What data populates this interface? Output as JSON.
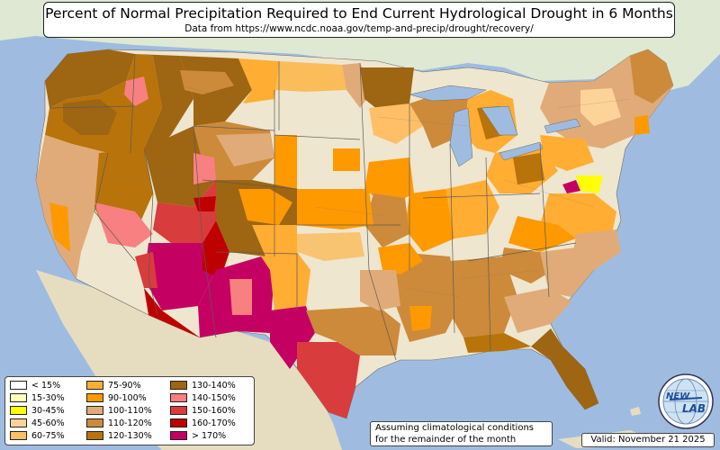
{
  "header": {
    "title": "Percent of Normal Precipitation Required to End Current Hydrological Drought in 6 Months",
    "subtitle": "Data from https://www.ncdc.noaa.gov/temp-and-precip/drought/recovery/"
  },
  "legend": {
    "items": [
      {
        "label": "< 15%",
        "color": "#ffffff"
      },
      {
        "label": "15-30%",
        "color": "#ffffc0"
      },
      {
        "label": "30-45%",
        "color": "#ffff00"
      },
      {
        "label": "45-60%",
        "color": "#fdd39a"
      },
      {
        "label": "60-75%",
        "color": "#ffbf66"
      },
      {
        "label": "75-90%",
        "color": "#ffad33"
      },
      {
        "label": "90-100%",
        "color": "#ff9900"
      },
      {
        "label": "100-110%",
        "color": "#e0ab78"
      },
      {
        "label": "110-120%",
        "color": "#cd8a3a"
      },
      {
        "label": "120-130%",
        "color": "#b8730a"
      },
      {
        "label": "130-140%",
        "color": "#9e6512"
      },
      {
        "label": "140-150%",
        "color": "#f88080"
      },
      {
        "label": "150-160%",
        "color": "#d93c3c"
      },
      {
        "label": "160-170%",
        "color": "#bf0000"
      },
      {
        "label": "> 170%",
        "color": "#c40062"
      }
    ]
  },
  "footer": {
    "note_line1": "Assuming climatological conditions",
    "note_line2": "for the remainder of the month",
    "valid": "Valid: November 21 2025"
  },
  "logo": {
    "text_top": "NEW",
    "text_bottom": "LAB",
    "icon": "globe-icon"
  },
  "colors": {
    "ocean": "#9fbce0",
    "land_outside": "#dfe8d2",
    "no_drought": "#eee6cf",
    "lakes": "#9fbce0"
  }
}
